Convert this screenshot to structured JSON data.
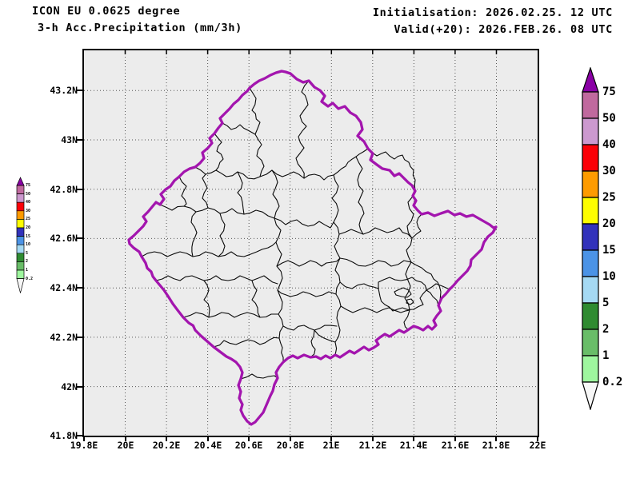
{
  "header": {
    "model": "ICON EU 0.0625 degree",
    "product": "3-h Acc.Precipitation (mm/3h)",
    "initialisation": "Initialisation: 2026.02.25. 12 UTC",
    "valid": "Valid(+20): 2026.FEB.26. 08 UTC"
  },
  "axes": {
    "lat_ticks": [
      "43.2N",
      "43N",
      "42.8N",
      "42.6N",
      "42.4N",
      "42.2N",
      "42N",
      "41.8N"
    ],
    "lon_ticks": [
      "19.8E",
      "20E",
      "20.2E",
      "20.4E",
      "20.6E",
      "20.8E",
      "21E",
      "21.2E",
      "21.4E",
      "21.6E",
      "21.8E",
      "22E"
    ]
  },
  "colorbar": {
    "labels_top_to_bottom": [
      "75",
      "50",
      "40",
      "30",
      "25",
      "20",
      "15",
      "10",
      "5",
      "2",
      "1",
      "0.2"
    ],
    "over_color": "#8a00a5",
    "under_color": "#f7f7f7",
    "segment_colors_top_to_bottom": [
      "#c0699e",
      "#cc99cf",
      "#fb0007",
      "#fe9b00",
      "#fdfd00",
      "#3232bb",
      "#4b93e6",
      "#a5d9f3",
      "#2f8b31",
      "#69bd68",
      "#9ef69e"
    ]
  },
  "map_colors": {
    "plot_background": "#ececec",
    "country_border": "#a315ae",
    "district_border": "#0a0a0a",
    "grid_dots": "#555555"
  }
}
